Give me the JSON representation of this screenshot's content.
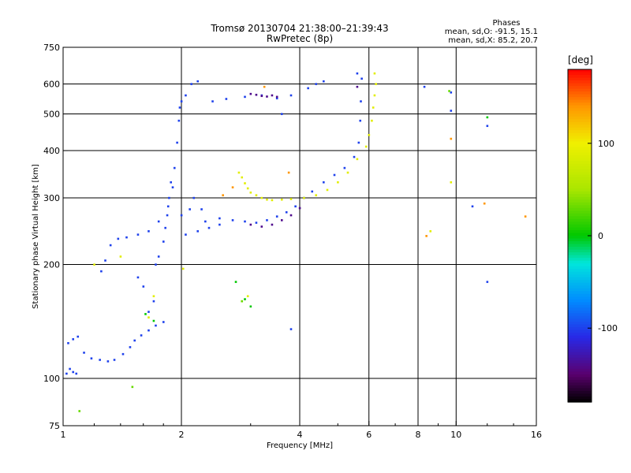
{
  "chart_data": {
    "type": "scatter",
    "title": "Tromsø 20130704 21:38:00–21:39:43",
    "subtitle": "RwPretec (8p)",
    "stats": {
      "heading": "Phases",
      "line_o": "mean, sd,O: -91.5, 15.1",
      "line_x": "mean, sd,X: 85.2, 20.7"
    },
    "xlabel": "Frequency [MHz]",
    "ylabel": "Stationary phase Virtual Height [km]",
    "x_scale": "log",
    "y_scale": "log",
    "xlim": [
      1,
      16
    ],
    "ylim": [
      75,
      750
    ],
    "xticks": [
      1,
      2,
      4,
      6,
      8,
      10,
      16
    ],
    "xticks_labels": [
      "1",
      "2",
      "4",
      "6",
      "8",
      "10",
      "16"
    ],
    "yticks": [
      75,
      100,
      200,
      300,
      400,
      500,
      600,
      750
    ],
    "yticks_labels": [
      "75",
      "100",
      "200",
      "300",
      "400",
      "500",
      "600",
      "750"
    ],
    "grid": true,
    "colorbar": {
      "label": "[deg]",
      "min": -180,
      "max": 180,
      "ticks": [
        100,
        0,
        -100
      ],
      "ticks_labels": [
        "100",
        "0",
        "-100"
      ],
      "colormap": "rainbow (black–purple–blue–cyan–green–yellow–red)"
    },
    "series": [
      {
        "phase_deg": -100,
        "points": [
          [
            1.02,
            103
          ],
          [
            1.04,
            106
          ],
          [
            1.06,
            104
          ],
          [
            1.08,
            103
          ],
          [
            1.03,
            124
          ],
          [
            1.06,
            127
          ],
          [
            1.09,
            129
          ],
          [
            1.13,
            117
          ],
          [
            1.18,
            113
          ],
          [
            1.24,
            112
          ],
          [
            1.3,
            111
          ],
          [
            1.35,
            112
          ],
          [
            1.42,
            116
          ],
          [
            1.48,
            121
          ],
          [
            1.52,
            126
          ],
          [
            1.58,
            130
          ],
          [
            1.65,
            134
          ],
          [
            1.72,
            138
          ],
          [
            1.8,
            141
          ],
          [
            1.25,
            192
          ],
          [
            1.28,
            205
          ],
          [
            1.32,
            225
          ],
          [
            1.38,
            234
          ],
          [
            1.45,
            236
          ],
          [
            1.55,
            240
          ],
          [
            1.65,
            245
          ],
          [
            1.75,
            260
          ],
          [
            1.85,
            285
          ],
          [
            1.9,
            320
          ],
          [
            1.92,
            360
          ],
          [
            1.95,
            420
          ],
          [
            1.97,
            480
          ],
          [
            1.98,
            520
          ],
          [
            2.0,
            540
          ],
          [
            2.05,
            560
          ],
          [
            2.12,
            600
          ],
          [
            2.2,
            610
          ],
          [
            2.4,
            540
          ],
          [
            2.6,
            548
          ],
          [
            2.9,
            555
          ],
          [
            3.2,
            560
          ],
          [
            3.5,
            550
          ],
          [
            3.8,
            560
          ],
          [
            4.2,
            585
          ],
          [
            4.6,
            610
          ],
          [
            4.4,
            600
          ],
          [
            2.5,
            265
          ],
          [
            2.7,
            262
          ],
          [
            2.9,
            260
          ],
          [
            3.1,
            258
          ],
          [
            3.3,
            262
          ],
          [
            3.5,
            268
          ],
          [
            3.7,
            275
          ],
          [
            3.9,
            285
          ],
          [
            4.1,
            300
          ],
          [
            4.3,
            312
          ],
          [
            4.6,
            330
          ],
          [
            4.9,
            345
          ],
          [
            5.2,
            360
          ],
          [
            5.5,
            385
          ],
          [
            5.65,
            420
          ],
          [
            5.7,
            480
          ],
          [
            5.72,
            540
          ],
          [
            5.75,
            620
          ],
          [
            5.6,
            640
          ],
          [
            2.05,
            240
          ],
          [
            2.2,
            245
          ],
          [
            2.35,
            250
          ],
          [
            2.5,
            255
          ],
          [
            1.7,
            160
          ],
          [
            1.65,
            150
          ],
          [
            1.6,
            175
          ],
          [
            1.55,
            185
          ],
          [
            1.72,
            200
          ],
          [
            1.75,
            210
          ],
          [
            1.8,
            230
          ],
          [
            1.82,
            250
          ],
          [
            1.84,
            270
          ],
          [
            1.86,
            300
          ],
          [
            1.88,
            330
          ],
          [
            2.0,
            270
          ],
          [
            2.1,
            280
          ],
          [
            2.15,
            300
          ],
          [
            2.25,
            280
          ],
          [
            2.3,
            260
          ],
          [
            8.3,
            590
          ],
          [
            9.7,
            510
          ],
          [
            12.0,
            465
          ],
          [
            12.0,
            180
          ],
          [
            11.0,
            285
          ],
          [
            9.7,
            570
          ],
          [
            3.6,
            500
          ],
          [
            3.8,
            135
          ]
        ]
      },
      {
        "phase_deg": -140,
        "points": [
          [
            3.0,
            565
          ],
          [
            3.1,
            562
          ],
          [
            3.2,
            558
          ],
          [
            3.3,
            556
          ],
          [
            3.4,
            560
          ],
          [
            3.5,
            555
          ],
          [
            3.0,
            255
          ],
          [
            3.2,
            252
          ],
          [
            3.4,
            255
          ],
          [
            3.6,
            262
          ],
          [
            3.8,
            270
          ],
          [
            4.0,
            282
          ],
          [
            5.6,
            590
          ]
        ]
      },
      {
        "phase_deg": 90,
        "points": [
          [
            2.8,
            350
          ],
          [
            2.85,
            340
          ],
          [
            2.9,
            328
          ],
          [
            2.95,
            318
          ],
          [
            3.0,
            310
          ],
          [
            3.1,
            305
          ],
          [
            3.2,
            300
          ],
          [
            3.3,
            297
          ],
          [
            3.4,
            296
          ],
          [
            3.6,
            297
          ],
          [
            3.8,
            298
          ],
          [
            4.1,
            300
          ],
          [
            4.4,
            305
          ],
          [
            4.7,
            315
          ],
          [
            5.0,
            330
          ],
          [
            5.3,
            350
          ],
          [
            5.6,
            380
          ],
          [
            5.9,
            410
          ],
          [
            6.0,
            440
          ],
          [
            6.1,
            480
          ],
          [
            6.15,
            520
          ],
          [
            6.2,
            560
          ],
          [
            6.25,
            600
          ],
          [
            6.2,
            640
          ],
          [
            2.95,
            165
          ],
          [
            2.85,
            160
          ],
          [
            1.65,
            145
          ],
          [
            1.7,
            165
          ],
          [
            1.4,
            210
          ],
          [
            1.2,
            200
          ],
          [
            2.02,
            195
          ],
          [
            9.7,
            330
          ],
          [
            8.6,
            245
          ]
        ]
      },
      {
        "phase_deg": 140,
        "points": [
          [
            2.55,
            305
          ],
          [
            2.7,
            320
          ],
          [
            3.25,
            590
          ],
          [
            3.75,
            350
          ],
          [
            9.7,
            430
          ],
          [
            11.8,
            290
          ],
          [
            15.0,
            268
          ],
          [
            8.4,
            238
          ]
        ]
      },
      {
        "phase_deg": 0,
        "points": [
          [
            3.0,
            155
          ],
          [
            2.9,
            162
          ],
          [
            1.62,
            148
          ],
          [
            1.7,
            142
          ],
          [
            2.75,
            180
          ],
          [
            12.0,
            490
          ]
        ]
      },
      {
        "phase_deg": 30,
        "points": [
          [
            1.5,
            95
          ],
          [
            1.1,
            82
          ],
          [
            2.85,
            160
          ],
          [
            9.6,
            575
          ]
        ]
      }
    ]
  }
}
